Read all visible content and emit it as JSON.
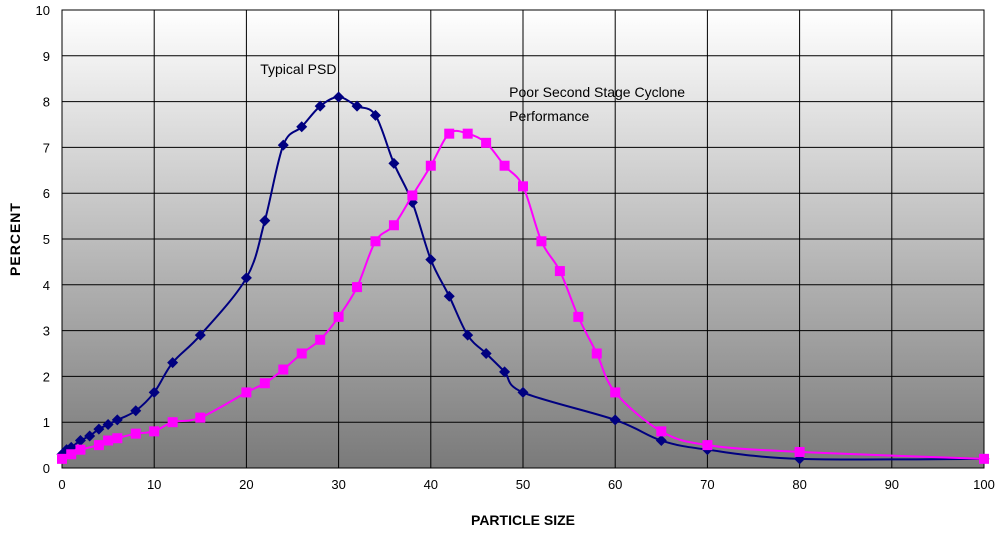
{
  "chart_data": {
    "type": "line",
    "xlabel": "PARTICLE SIZE",
    "ylabel": "PERCENT",
    "xlim": [
      0,
      100
    ],
    "ylim": [
      0,
      10
    ],
    "xticks": [
      0,
      10,
      20,
      30,
      40,
      50,
      60,
      70,
      80,
      90,
      100
    ],
    "yticks": [
      0,
      1,
      2,
      3,
      4,
      5,
      6,
      7,
      8,
      9,
      10
    ],
    "grid": true,
    "background": "vertical-gradient white-to-gray",
    "annotations": [
      {
        "text_lines": [
          "Typical PSD"
        ],
        "x": 21.5,
        "y": 8.6
      },
      {
        "text_lines": [
          "Poor Second Stage Cyclone",
          "Performance"
        ],
        "x": 48.5,
        "y": 8.1
      }
    ],
    "series": [
      {
        "marker": "diamond",
        "color": "#000080",
        "points": [
          [
            0,
            0.3
          ],
          [
            0.5,
            0.4
          ],
          [
            1,
            0.45
          ],
          [
            2,
            0.6
          ],
          [
            3,
            0.7
          ],
          [
            4,
            0.85
          ],
          [
            5,
            0.95
          ],
          [
            6,
            1.05
          ],
          [
            8,
            1.25
          ],
          [
            10,
            1.65
          ],
          [
            12,
            2.3
          ],
          [
            15,
            2.9
          ],
          [
            20,
            4.15
          ],
          [
            22,
            5.4
          ],
          [
            24,
            7.05
          ],
          [
            26,
            7.45
          ],
          [
            28,
            7.9
          ],
          [
            30,
            8.1
          ],
          [
            32,
            7.9
          ],
          [
            34,
            7.7
          ],
          [
            36,
            6.65
          ],
          [
            38,
            5.8
          ],
          [
            40,
            4.55
          ],
          [
            42,
            3.75
          ],
          [
            44,
            2.9
          ],
          [
            46,
            2.5
          ],
          [
            48,
            2.1
          ],
          [
            50,
            1.65
          ],
          [
            60,
            1.05
          ],
          [
            65,
            0.6
          ],
          [
            70,
            0.4
          ],
          [
            80,
            0.2
          ],
          [
            100,
            0.2
          ]
        ]
      },
      {
        "marker": "square",
        "color": "#ff00ff",
        "points": [
          [
            0,
            0.2
          ],
          [
            1,
            0.3
          ],
          [
            2,
            0.4
          ],
          [
            4,
            0.5
          ],
          [
            5,
            0.6
          ],
          [
            6,
            0.65
          ],
          [
            8,
            0.75
          ],
          [
            10,
            0.8
          ],
          [
            12,
            1.0
          ],
          [
            15,
            1.1
          ],
          [
            20,
            1.65
          ],
          [
            22,
            1.85
          ],
          [
            24,
            2.15
          ],
          [
            26,
            2.5
          ],
          [
            28,
            2.8
          ],
          [
            30,
            3.3
          ],
          [
            32,
            3.95
          ],
          [
            34,
            4.95
          ],
          [
            36,
            5.3
          ],
          [
            38,
            5.95
          ],
          [
            40,
            6.6
          ],
          [
            42,
            7.3
          ],
          [
            44,
            7.3
          ],
          [
            46,
            7.1
          ],
          [
            48,
            6.6
          ],
          [
            50,
            6.15
          ],
          [
            52,
            4.95
          ],
          [
            54,
            4.3
          ],
          [
            56,
            3.3
          ],
          [
            58,
            2.5
          ],
          [
            60,
            1.65
          ],
          [
            65,
            0.8
          ],
          [
            70,
            0.5
          ],
          [
            80,
            0.35
          ],
          [
            100,
            0.2
          ]
        ]
      }
    ]
  }
}
